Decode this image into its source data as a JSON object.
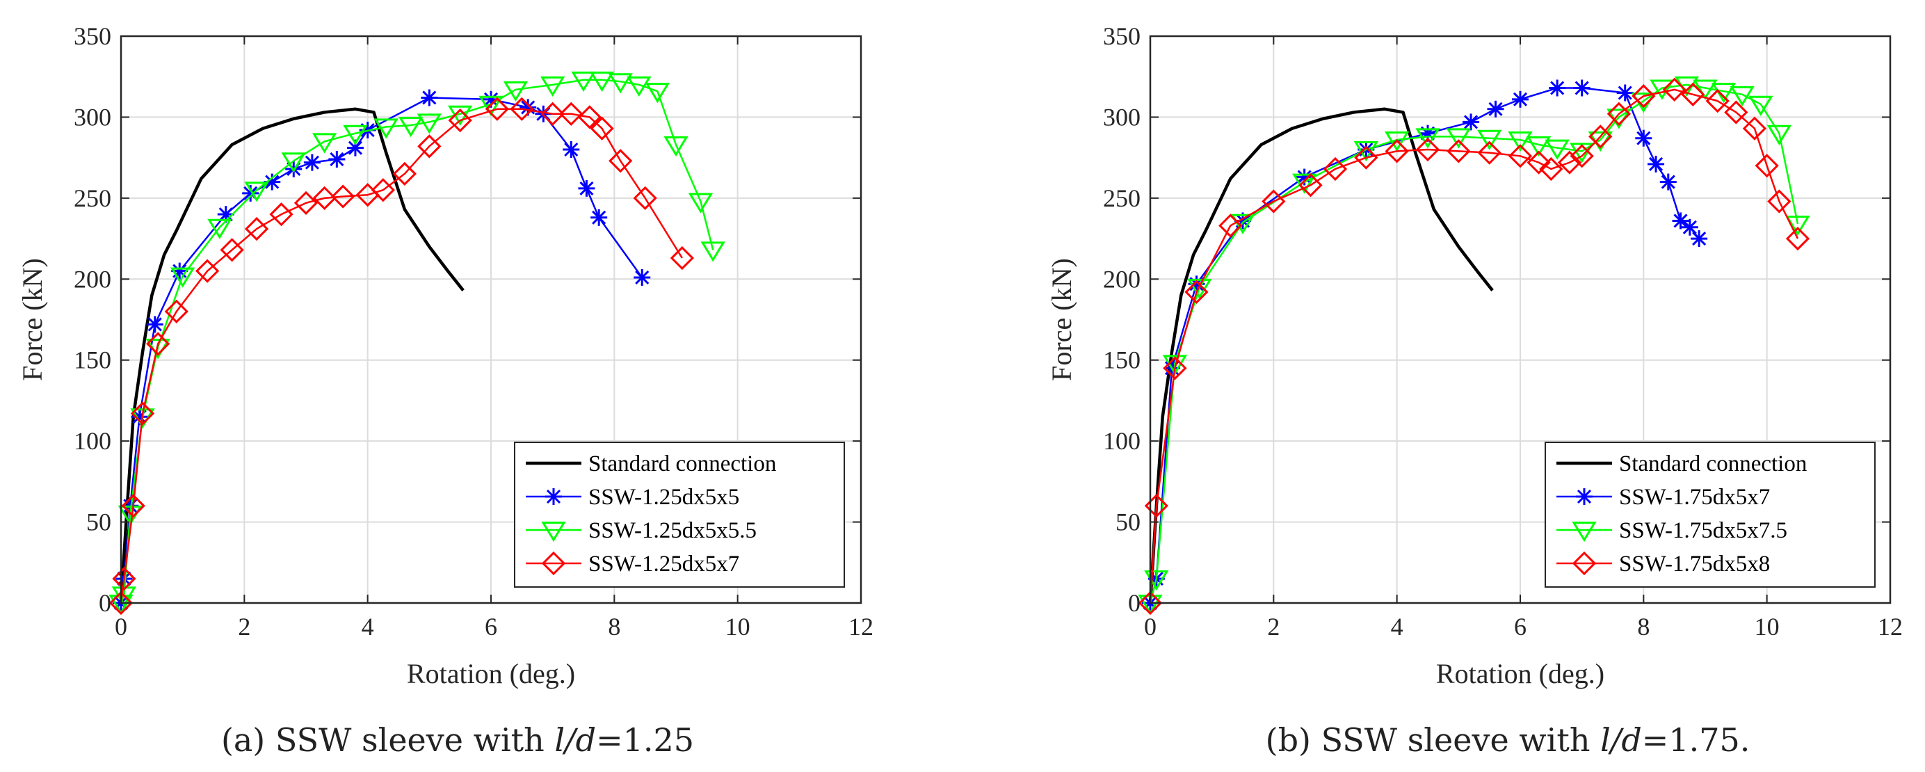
{
  "chart_data": [
    {
      "type": "line",
      "panel": "a",
      "title": "",
      "xlabel": "Rotation (deg.)",
      "ylabel": "Force (kN)",
      "xlim": [
        0,
        12
      ],
      "ylim": [
        0,
        350
      ],
      "xticks": [
        "0",
        "2",
        "4",
        "6",
        "8",
        "10",
        "12"
      ],
      "yticks": [
        "0",
        "50",
        "100",
        "150",
        "200",
        "250",
        "300",
        "350"
      ],
      "grid": true,
      "legend_position": "bottom-right",
      "caption": {
        "prefix": "(a)  SSW sleeve with ",
        "ratio": "l/d",
        "suffix": "=1.25"
      },
      "series": [
        {
          "name": "Standard connection",
          "color": "#000000",
          "marker": "none",
          "x": [
            0,
            0.1,
            0.2,
            0.35,
            0.5,
            0.7,
            0.9,
            1.3,
            1.8,
            2.3,
            2.8,
            3.3,
            3.8,
            4.1,
            4.3,
            4.6,
            5.0,
            5.3,
            5.55
          ],
          "y": [
            0,
            60,
            115,
            155,
            190,
            215,
            230,
            262,
            283,
            293,
            299,
            303,
            305,
            303,
            278,
            243,
            220,
            205,
            193
          ]
        },
        {
          "name": "SSW-1.25dx5x5",
          "color": "#0000ff",
          "marker": "star",
          "x": [
            0,
            0.05,
            0.15,
            0.3,
            0.55,
            0.95,
            1.7,
            2.1,
            2.45,
            2.8,
            3.1,
            3.5,
            3.8,
            4.0,
            5.0,
            6.0,
            6.6,
            6.85,
            7.3,
            7.55,
            7.75,
            8.45
          ],
          "y": [
            0,
            15,
            60,
            115,
            172,
            205,
            240,
            253,
            260,
            268,
            272,
            274,
            281,
            292,
            312,
            311,
            306,
            302,
            280,
            256,
            238,
            201
          ]
        },
        {
          "name": "SSW-1.25dx5x5.5",
          "color": "#00ff00",
          "marker": "triangle-down",
          "x": [
            0,
            0.05,
            0.15,
            0.35,
            0.6,
            1.0,
            1.6,
            2.2,
            2.8,
            3.3,
            3.8,
            4.3,
            4.7,
            5.0,
            5.5,
            6.0,
            6.4,
            7.0,
            7.5,
            7.8,
            8.1,
            8.4,
            8.7,
            9.0,
            9.4,
            9.6
          ],
          "y": [
            0,
            5,
            55,
            115,
            158,
            202,
            232,
            255,
            273,
            285,
            290,
            294,
            295,
            297,
            302,
            308,
            317,
            320,
            323,
            323,
            322,
            320,
            316,
            283,
            248,
            218
          ]
        },
        {
          "name": "SSW-1.25dx5x7",
          "color": "#ff0000",
          "marker": "diamond",
          "x": [
            0,
            0.05,
            0.2,
            0.35,
            0.6,
            0.9,
            1.4,
            1.8,
            2.2,
            2.6,
            3.0,
            3.3,
            3.6,
            4.0,
            4.25,
            4.6,
            5.0,
            5.5,
            6.1,
            6.5,
            7.0,
            7.3,
            7.6,
            7.8,
            8.1,
            8.5,
            9.1
          ],
          "y": [
            0,
            15,
            60,
            117,
            160,
            180,
            205,
            218,
            231,
            240,
            247,
            250,
            251,
            252,
            255,
            265,
            282,
            298,
            305,
            305,
            302,
            302,
            300,
            293,
            273,
            250,
            213
          ]
        }
      ]
    },
    {
      "type": "line",
      "panel": "b",
      "title": "",
      "xlabel": "Rotation (deg.)",
      "ylabel": "Force (kN)",
      "xlim": [
        0,
        12
      ],
      "ylim": [
        0,
        350
      ],
      "xticks": [
        "0",
        "2",
        "4",
        "6",
        "8",
        "10",
        "12"
      ],
      "yticks": [
        "0",
        "50",
        "100",
        "150",
        "200",
        "250",
        "300",
        "350"
      ],
      "grid": true,
      "legend_position": "bottom-right",
      "caption": {
        "prefix": "(b)  SSW sleeve with ",
        "ratio": "l/d",
        "suffix": "=1.75."
      },
      "series": [
        {
          "name": "Standard connection",
          "color": "#000000",
          "marker": "none",
          "x": [
            0,
            0.1,
            0.2,
            0.35,
            0.5,
            0.7,
            0.9,
            1.3,
            1.8,
            2.3,
            2.8,
            3.3,
            3.8,
            4.1,
            4.3,
            4.6,
            5.0,
            5.3,
            5.55
          ],
          "y": [
            0,
            60,
            115,
            155,
            190,
            215,
            230,
            262,
            283,
            293,
            299,
            303,
            305,
            303,
            278,
            243,
            220,
            205,
            193
          ]
        },
        {
          "name": "SSW-1.75dx5x7",
          "color": "#0000ff",
          "marker": "star",
          "x": [
            0,
            0.1,
            0.35,
            0.75,
            1.5,
            2.5,
            3.5,
            4.5,
            5.2,
            5.6,
            6.0,
            6.6,
            7.0,
            7.7,
            8.0,
            8.2,
            8.4,
            8.6,
            8.75,
            8.9
          ],
          "y": [
            0,
            15,
            145,
            197,
            236,
            263,
            280,
            290,
            297,
            305,
            311,
            318,
            318,
            315,
            287,
            271,
            260,
            236,
            232,
            225
          ]
        },
        {
          "name": "SSW-1.75dx5x7.5",
          "color": "#00ff00",
          "marker": "triangle-down",
          "x": [
            0,
            0.1,
            0.4,
            0.8,
            1.5,
            2.5,
            3.5,
            4.0,
            4.5,
            5.0,
            5.5,
            6.0,
            6.3,
            6.6,
            7.0,
            7.3,
            7.6,
            8.0,
            8.3,
            8.7,
            9.0,
            9.3,
            9.6,
            9.9,
            10.2,
            10.5
          ],
          "y": [
            0,
            15,
            148,
            195,
            235,
            260,
            280,
            286,
            288,
            288,
            287,
            286,
            283,
            281,
            279,
            286,
            300,
            310,
            318,
            320,
            318,
            316,
            314,
            308,
            290,
            234
          ]
        },
        {
          "name": "SSW-1.75dx5x8",
          "color": "#ff0000",
          "marker": "diamond",
          "x": [
            0,
            0.1,
            0.4,
            0.75,
            1.3,
            2.0,
            2.6,
            3.0,
            3.5,
            4.0,
            4.5,
            5.0,
            5.5,
            6.0,
            6.3,
            6.5,
            6.8,
            7.0,
            7.3,
            7.6,
            8.0,
            8.5,
            8.8,
            9.2,
            9.5,
            9.8,
            10.0,
            10.2,
            10.5
          ],
          "y": [
            0,
            60,
            145,
            192,
            233,
            248,
            258,
            268,
            275,
            279,
            280,
            279,
            278,
            276,
            272,
            268,
            272,
            276,
            288,
            302,
            313,
            317,
            314,
            310,
            303,
            293,
            270,
            248,
            225
          ]
        }
      ]
    }
  ]
}
